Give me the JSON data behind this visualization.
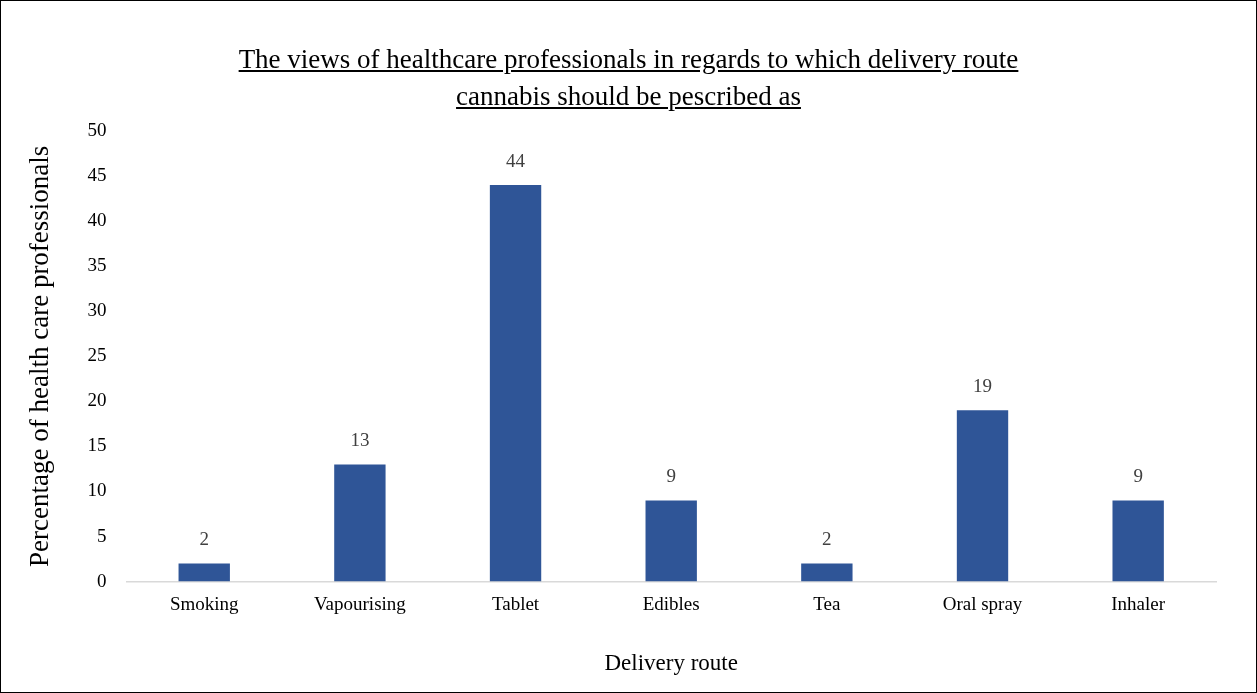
{
  "chart_data": {
    "type": "bar",
    "title": "The views of healthcare professionals in regards to which delivery route cannabis should be pescribed as",
    "xlabel": "Delivery route",
    "ylabel": "Percentage of health care professionals",
    "categories": [
      "Smoking",
      "Vapourising",
      "Tablet",
      "Edibles",
      "Tea",
      "Oral spray",
      "Inhaler"
    ],
    "values": [
      2,
      13,
      44,
      9,
      2,
      19,
      9
    ],
    "color": "#2f5597",
    "ylim": [
      0,
      50
    ],
    "yticks": [
      0,
      5,
      10,
      15,
      20,
      25,
      30,
      35,
      40,
      45,
      50
    ],
    "grid": false,
    "legend": false,
    "data_labels": true
  }
}
